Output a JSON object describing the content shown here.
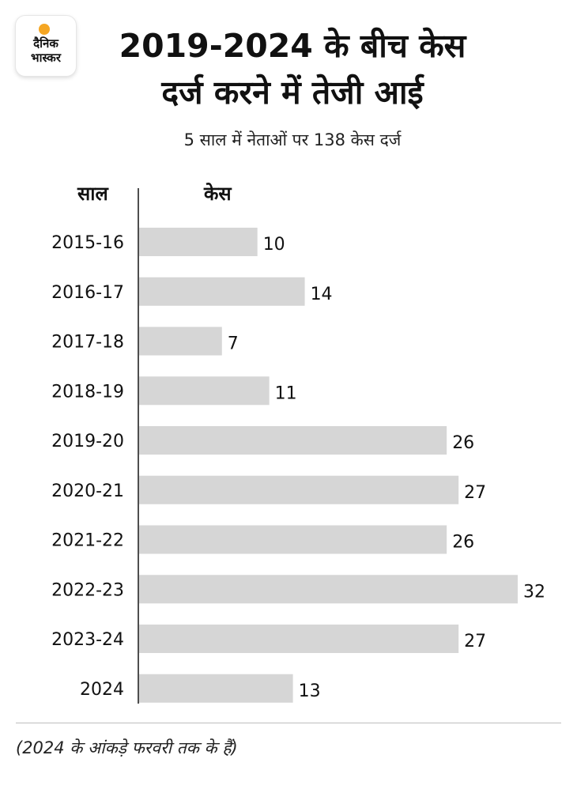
{
  "logo": {
    "line1": "दैनिक",
    "line2": "भास्कर",
    "sun_color": "#f5a623"
  },
  "title_line1": "2019-2024 के बीच केस",
  "title_line2": "दर्ज करने में तेजी आई",
  "subtitle": "5 साल में नेताओं पर 138 केस दर्ज",
  "column_headers": {
    "years": "साल",
    "cases": "केस"
  },
  "footnote": "(2024 के आंकड़े फरवरी तक के हैं)",
  "chart_data": {
    "type": "bar",
    "orientation": "horizontal",
    "categories": [
      "2015-16",
      "2016-17",
      "2017-18",
      "2018-19",
      "2019-20",
      "2020-21",
      "2021-22",
      "2022-23",
      "2023-24",
      "2024"
    ],
    "values": [
      10,
      14,
      7,
      11,
      26,
      27,
      26,
      32,
      27,
      13
    ],
    "bar_color": "#d6d6d6",
    "xlim": [
      0,
      32
    ],
    "grid": false,
    "data_labels": true
  }
}
